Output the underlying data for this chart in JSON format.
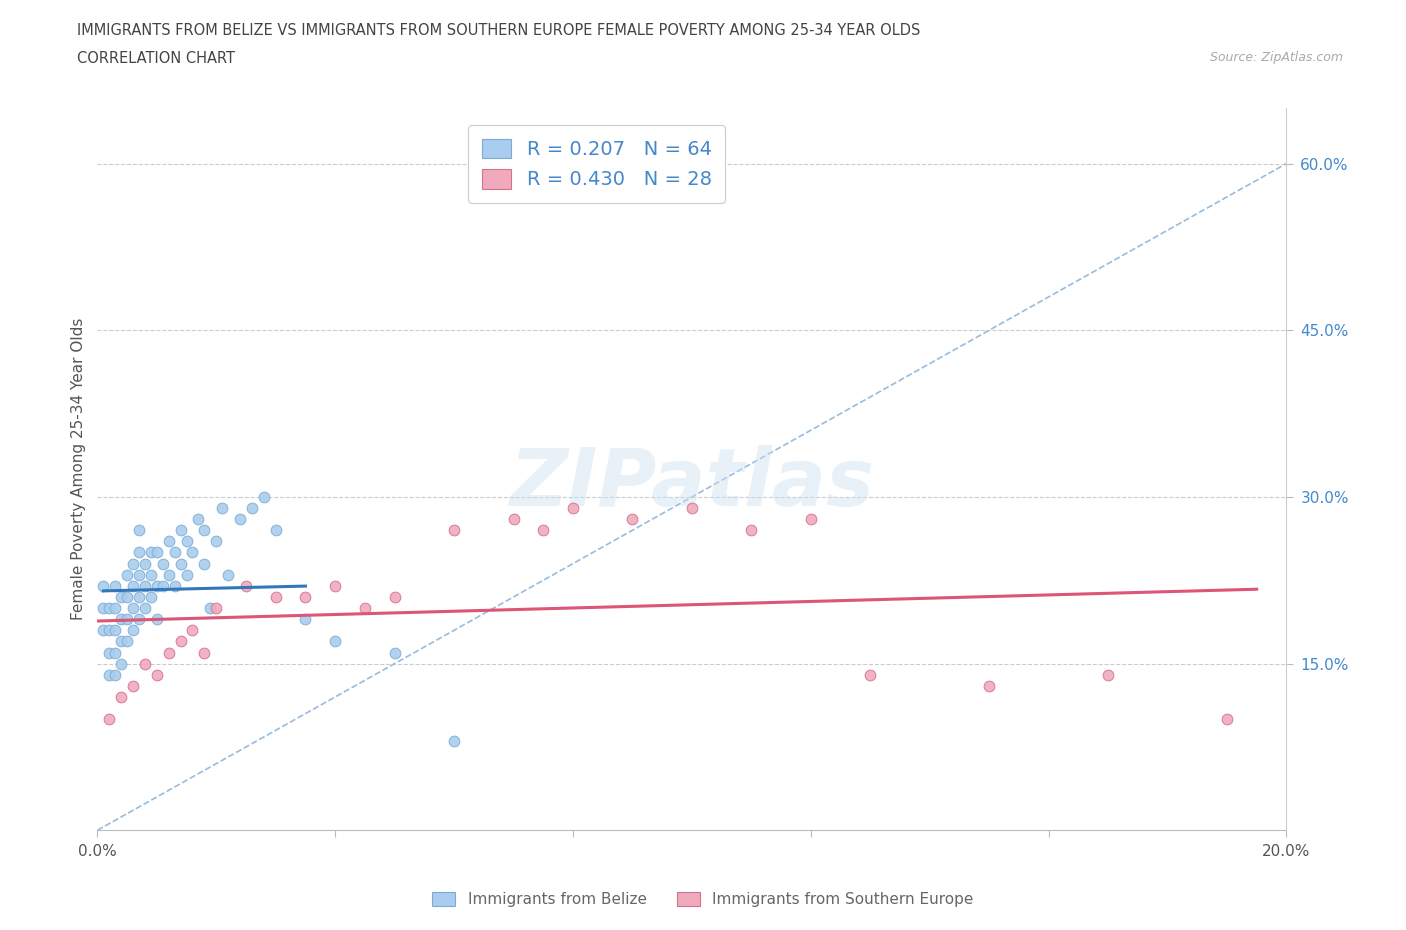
{
  "title_line1": "IMMIGRANTS FROM BELIZE VS IMMIGRANTS FROM SOUTHERN EUROPE FEMALE POVERTY AMONG 25-34 YEAR OLDS",
  "title_line2": "CORRELATION CHART",
  "source_text": "Source: ZipAtlas.com",
  "ylabel": "Female Poverty Among 25-34 Year Olds",
  "xlim": [
    0.0,
    0.2
  ],
  "ylim": [
    0.0,
    0.65
  ],
  "xtick_vals": [
    0.0,
    0.04,
    0.08,
    0.12,
    0.16,
    0.2
  ],
  "xtick_labs": [
    "0.0%",
    "",
    "",
    "",
    "",
    "20.0%"
  ],
  "ytick_vals": [
    0.15,
    0.3,
    0.45,
    0.6
  ],
  "ytick_labs": [
    "15.0%",
    "30.0%",
    "45.0%",
    "60.0%"
  ],
  "belize_color": "#aaccee",
  "belize_edge": "#7aadd4",
  "southern_color": "#f0aabc",
  "southern_edge": "#d47090",
  "legend_label_belize": "R = 0.207   N = 64",
  "legend_label_southern": "R = 0.430   N = 28",
  "legend_text_color": "#4488cc",
  "background_color": "#ffffff",
  "grid_color": "#cccccc",
  "trend_belize_color": "#3377bb",
  "trend_southern_color": "#dd5577",
  "trend_dash_color": "#99bbdd",
  "belize_scatter_x": [
    0.001,
    0.001,
    0.001,
    0.002,
    0.002,
    0.002,
    0.002,
    0.003,
    0.003,
    0.003,
    0.003,
    0.003,
    0.004,
    0.004,
    0.004,
    0.004,
    0.005,
    0.005,
    0.005,
    0.005,
    0.006,
    0.006,
    0.006,
    0.006,
    0.007,
    0.007,
    0.007,
    0.007,
    0.007,
    0.008,
    0.008,
    0.008,
    0.009,
    0.009,
    0.009,
    0.01,
    0.01,
    0.01,
    0.011,
    0.011,
    0.012,
    0.012,
    0.013,
    0.013,
    0.014,
    0.014,
    0.015,
    0.015,
    0.016,
    0.017,
    0.018,
    0.018,
    0.019,
    0.02,
    0.021,
    0.022,
    0.024,
    0.026,
    0.028,
    0.03,
    0.035,
    0.04,
    0.05,
    0.06
  ],
  "belize_scatter_y": [
    0.18,
    0.2,
    0.22,
    0.14,
    0.16,
    0.18,
    0.2,
    0.14,
    0.16,
    0.18,
    0.2,
    0.22,
    0.15,
    0.17,
    0.19,
    0.21,
    0.17,
    0.19,
    0.21,
    0.23,
    0.18,
    0.2,
    0.22,
    0.24,
    0.19,
    0.21,
    0.23,
    0.25,
    0.27,
    0.2,
    0.22,
    0.24,
    0.21,
    0.23,
    0.25,
    0.19,
    0.22,
    0.25,
    0.22,
    0.24,
    0.23,
    0.26,
    0.22,
    0.25,
    0.24,
    0.27,
    0.23,
    0.26,
    0.25,
    0.28,
    0.24,
    0.27,
    0.2,
    0.26,
    0.29,
    0.23,
    0.28,
    0.29,
    0.3,
    0.27,
    0.19,
    0.17,
    0.16,
    0.08
  ],
  "southern_scatter_x": [
    0.002,
    0.004,
    0.006,
    0.008,
    0.01,
    0.012,
    0.014,
    0.016,
    0.018,
    0.02,
    0.025,
    0.03,
    0.035,
    0.04,
    0.045,
    0.05,
    0.06,
    0.07,
    0.075,
    0.08,
    0.09,
    0.1,
    0.11,
    0.12,
    0.13,
    0.15,
    0.17,
    0.19
  ],
  "southern_scatter_y": [
    0.1,
    0.12,
    0.13,
    0.15,
    0.14,
    0.16,
    0.17,
    0.18,
    0.16,
    0.2,
    0.22,
    0.21,
    0.21,
    0.22,
    0.2,
    0.21,
    0.27,
    0.28,
    0.27,
    0.29,
    0.28,
    0.29,
    0.27,
    0.28,
    0.14,
    0.13,
    0.14,
    0.1
  ]
}
